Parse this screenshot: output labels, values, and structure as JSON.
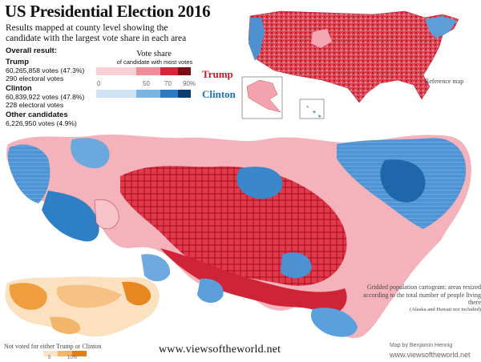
{
  "title": "US Presidential Election 2016",
  "subtitle": "Results mapped at county level showing the candidate with the largest vote share in each area",
  "overall": {
    "heading": "Overall result:",
    "candidates": [
      {
        "name": "Trump",
        "votes": "60,265,858 votes (47.3%)",
        "ev": "290 electoral votes"
      },
      {
        "name": "Clinton",
        "votes": "60,839,922 votes (47.8%)",
        "ev": "228 electoral votes"
      }
    ],
    "other": {
      "name": "Other candidates",
      "votes": "6,226,950 votes (4.9%)"
    }
  },
  "legend": {
    "title": "Vote share",
    "subtitle": "of candidate with most votes",
    "ticks": [
      "0",
      "50",
      "70",
      "90%"
    ],
    "trump_label": "Trump",
    "clinton_label": "Clinton",
    "trump_colors": [
      "#f8cfd4",
      "#ee8d98",
      "#d3273a",
      "#7b0d18"
    ],
    "clinton_colors": [
      "#cfe3f4",
      "#7db5e1",
      "#2c7bc0",
      "#0d3d6e"
    ]
  },
  "reference_map": {
    "label": "Reference map"
  },
  "cartogram_note": {
    "text": "Gridded population cartogram: areas resized according to the total number of people living there",
    "aside": "(Alaska and Hawaii not included)"
  },
  "other_inset": {
    "label": "Not voted for either Trump or Clinton",
    "ticks": [
      "5",
      "10%"
    ],
    "colors": [
      "#fae3c6",
      "#f3b46b",
      "#e07f15"
    ]
  },
  "url": "www.viewsoftheworld.net",
  "credit": {
    "line1": "Map by Benjamin Hennig",
    "line2": "www.viewsoftheworld.net"
  }
}
